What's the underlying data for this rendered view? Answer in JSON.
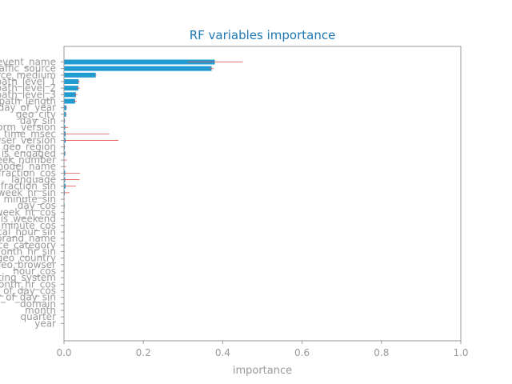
{
  "chart_data": {
    "type": "bar",
    "orientation": "horizontal",
    "title": "RF variables importance",
    "xlabel": "importance",
    "ylabel": "",
    "xlim": [
      0,
      1.0
    ],
    "xticks": [
      "0.0",
      "0.2",
      "0.4",
      "0.6",
      "0.8",
      "1.0"
    ],
    "grid": false,
    "legend": "none",
    "colors": {
      "bar": "#1f9bd1",
      "error": "#e05050",
      "title": "#1f77b4",
      "axis": "#999999"
    },
    "categories": [
      "event_name",
      "traffic_source",
      "source_medium",
      "path_level_1",
      "path_level_2",
      "path_level_3",
      "path_length",
      "day_of_year",
      "geo_city",
      "day_sin",
      "platform_version",
      "time_msec",
      "browser_version",
      "geo_region",
      "is_engaged",
      "week_number",
      "device_model_name",
      "fraction_cos",
      "language",
      "fraction_sin",
      "week_hr_sin",
      "minute_sin",
      "day_cos",
      "week_hr_cos",
      "is_weekend",
      "minute_cos",
      "local_hour_sin",
      "brand_name",
      "device_category",
      "month_hr_sin",
      "geo_country",
      "geo_browser",
      "hour_cos",
      "operating_system",
      "month_hr_cos",
      "hour_of_day_cos",
      "hour_of_day_sin",
      "domain",
      "month",
      "quarter",
      "year"
    ],
    "values": [
      0.38,
      0.372,
      0.08,
      0.037,
      0.036,
      0.03,
      0.028,
      0.006,
      0.005,
      0.002,
      0.003,
      0.004,
      0.004,
      0.002,
      0.003,
      0.001,
      0.001,
      0.003,
      0.003,
      0.004,
      0.002,
      0.001,
      0.0015,
      0.001,
      0.001,
      0.001,
      0.001,
      0.0008,
      0.0008,
      0.0008,
      0.0006,
      0.0006,
      0.0006,
      0.0005,
      0.0005,
      0.0004,
      0.0004,
      0.0002,
      0.0001,
      0.0001,
      0.0
    ],
    "errors": [
      0.07,
      0.005,
      0.002,
      0.003,
      0.004,
      0.004,
      0.004,
      0.002,
      0.002,
      0.002,
      0.008,
      0.11,
      0.133,
      0.002,
      0.002,
      0.006,
      0.004,
      0.037,
      0.036,
      0.026,
      0.012,
      0.001,
      0.001,
      0.001,
      0.001,
      0.001,
      0.001,
      0.001,
      0.001,
      0.001,
      0.001,
      0.001,
      0.001,
      0.001,
      0.001,
      0.001,
      0.001,
      0.0005,
      0.0005,
      0.0003,
      0.0
    ]
  }
}
